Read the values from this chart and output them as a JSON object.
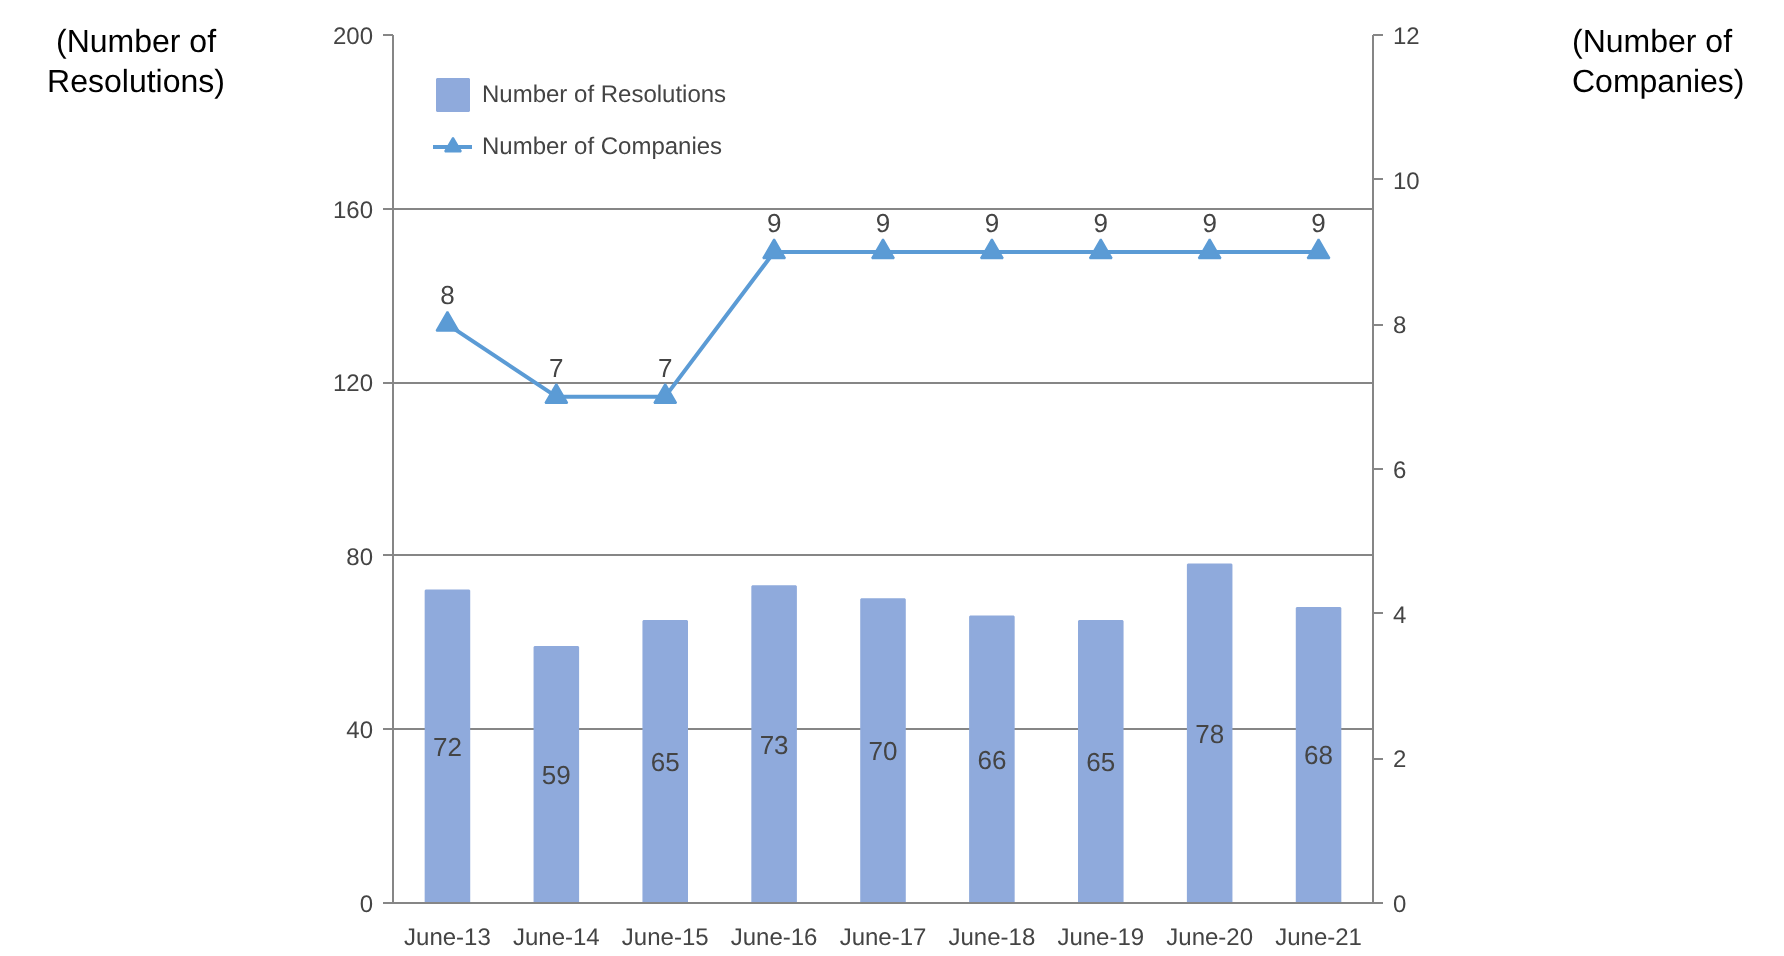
{
  "chart_data": {
    "type": "bar",
    "categories": [
      "June-13",
      "June-14",
      "June-15",
      "June-16",
      "June-17",
      "June-18",
      "June-19",
      "June-20",
      "June-21"
    ],
    "ylabel": "(Number of\nResolutions)",
    "y2label": "(Number of\nCompanies)",
    "series": [
      {
        "name": "Number of Resolutions",
        "color": "#8faadc",
        "values": [
          72,
          59,
          65,
          73,
          70,
          66,
          65,
          78,
          68
        ]
      },
      {
        "name": "Number of Companies",
        "type": "line",
        "axis": "y2",
        "color": "#5b9bd5",
        "marker": "triangle",
        "line_style": "solid",
        "values": [
          8,
          7,
          7,
          9,
          9,
          9,
          9,
          9,
          9
        ]
      }
    ],
    "ylim": [
      0,
      200
    ],
    "yticks": [
      0,
      40,
      80,
      120,
      160,
      200
    ],
    "y2lim": [
      0,
      12
    ],
    "y2ticks": [
      0,
      2,
      4,
      6,
      8,
      10,
      12
    ],
    "grid": "y",
    "legend": "top left",
    "data_labels": true
  }
}
